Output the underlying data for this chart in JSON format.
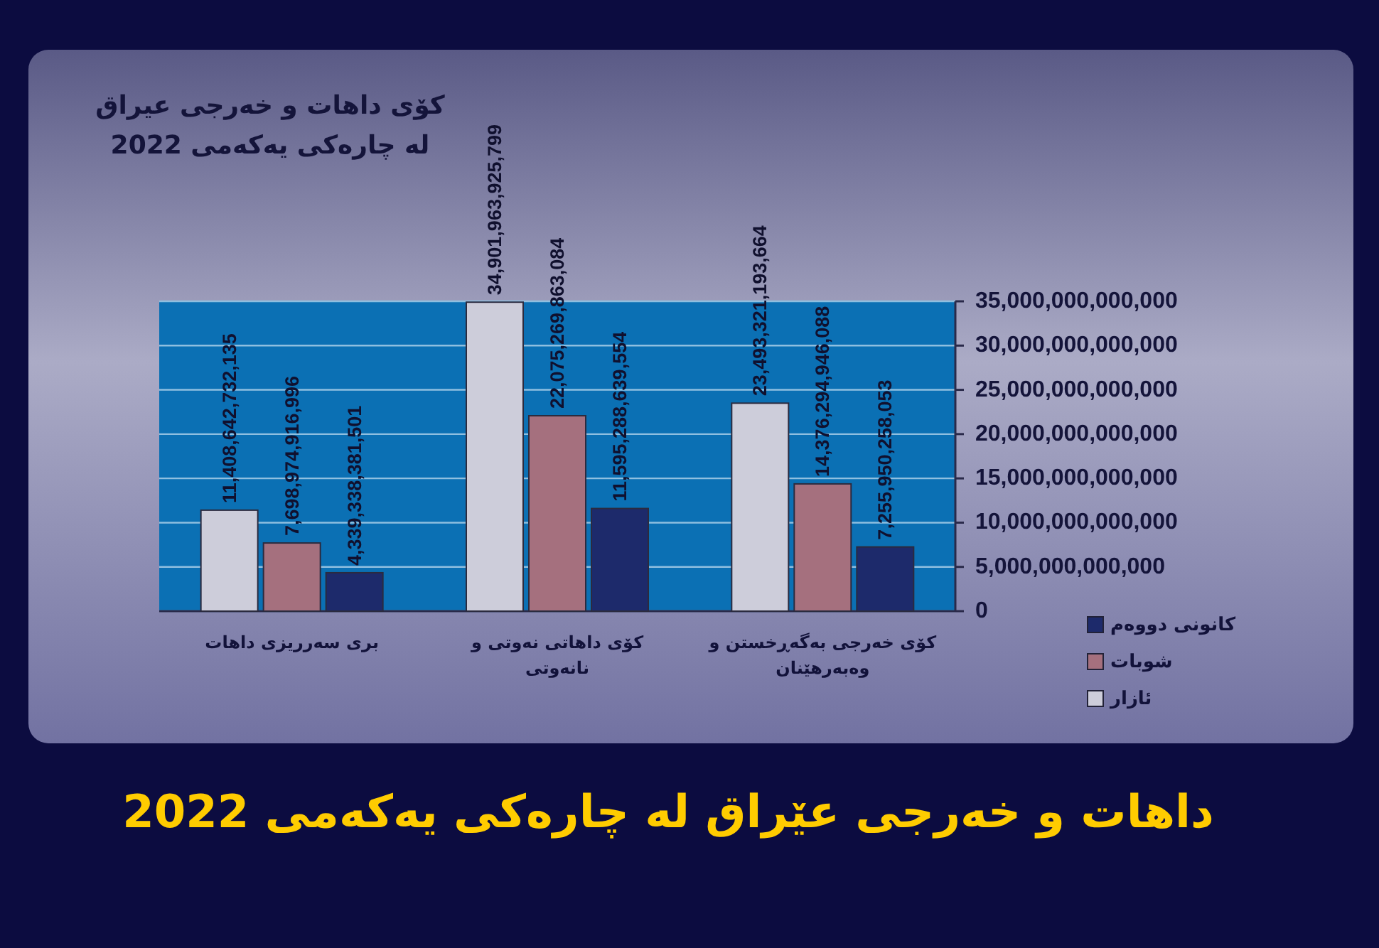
{
  "chart_data": {
    "type": "bar",
    "title": "کۆی داهات و خەرجی عیراق لە چارەکی یەکەمی 2022",
    "subtitle": "داهات و خەرجی عێراق لە چارەکی یەکەمی 2022",
    "categories": [
      "بری سەرریزی داهات",
      "کۆی داهاتی نەوتی و نانەوتی",
      "کۆی خەرجی بەگەڕخستن و وەبەرهێنان"
    ],
    "series": [
      {
        "name": "ئازار",
        "color": "#cdcdda",
        "values": [
          11408642732135,
          34901963925799,
          23493321193664
        ],
        "value_labels": [
          "11,408,642,732,135",
          "34,901,963,925,799",
          "23,493,321,193,664"
        ]
      },
      {
        "name": "شوبات",
        "color": "#a5707e",
        "values": [
          7698974916996,
          22075269863084,
          14376294946088
        ],
        "value_labels": [
          "7,698,974,916,996",
          "22,075,269,863,084",
          "14,376,294,946,088"
        ]
      },
      {
        "name": "کانونی دووەم",
        "color": "#1d2a6b",
        "values": [
          4339338381501,
          11595288639554,
          7255950258053
        ],
        "value_labels": [
          "4,339,338,381,501",
          "11,595,288,639,554",
          "7,255,950,258,053"
        ]
      }
    ],
    "ylim": [
      0,
      35000000000000
    ],
    "yticks": [
      0,
      {
        "value": 5000000000000,
        "label": "5,000,000,000,000"
      },
      {
        "value": 10000000000000,
        "label": "10,000,000,000,000"
      },
      {
        "value": 15000000000000,
        "label": "15,000,000,000,000"
      },
      {
        "value": 20000000000000,
        "label": "20,000,000,000,000"
      },
      {
        "value": 25000000000000,
        "label": "25,000,000,000,000"
      },
      {
        "value": 30000000000000,
        "label": "30,000,000,000,000"
      },
      {
        "value": 35000000000000,
        "label": "35,000,000,000,000"
      }
    ],
    "grid": "y",
    "legend": "bottom right"
  }
}
